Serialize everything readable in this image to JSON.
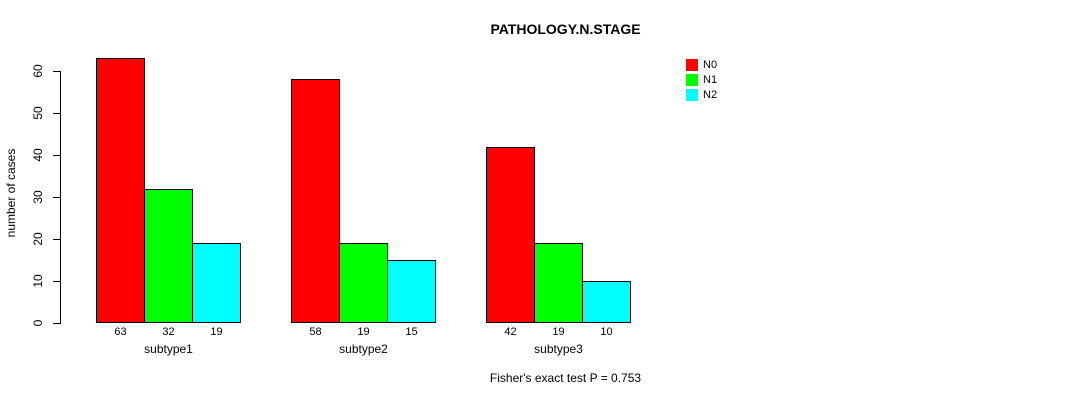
{
  "chart_data": {
    "type": "bar",
    "grouped": true,
    "title": "PATHOLOGY.N.STAGE",
    "xlabel": "",
    "ylabel": "number of cases",
    "categories": [
      "subtype1",
      "subtype2",
      "subtype3"
    ],
    "series": [
      {
        "name": "N0",
        "color": "#ff0000",
        "values": [
          63,
          58,
          42
        ]
      },
      {
        "name": "N1",
        "color": "#00ff00",
        "values": [
          32,
          19,
          19
        ]
      },
      {
        "name": "N2",
        "color": "#00ffff",
        "values": [
          19,
          15,
          10
        ]
      }
    ],
    "bar_value_labels": [
      [
        "63",
        "32",
        "19"
      ],
      [
        "58",
        "19",
        "15"
      ],
      [
        "42",
        "19",
        "10"
      ]
    ],
    "ylim": [
      0,
      63
    ],
    "yticks": [
      0,
      10,
      20,
      30,
      40,
      50,
      60
    ],
    "grid": false,
    "legend_position": "top-right",
    "annotation": "Fisher's exact test P = 0.753",
    "background": "#ffffff",
    "bar_border_color": "#000000"
  }
}
